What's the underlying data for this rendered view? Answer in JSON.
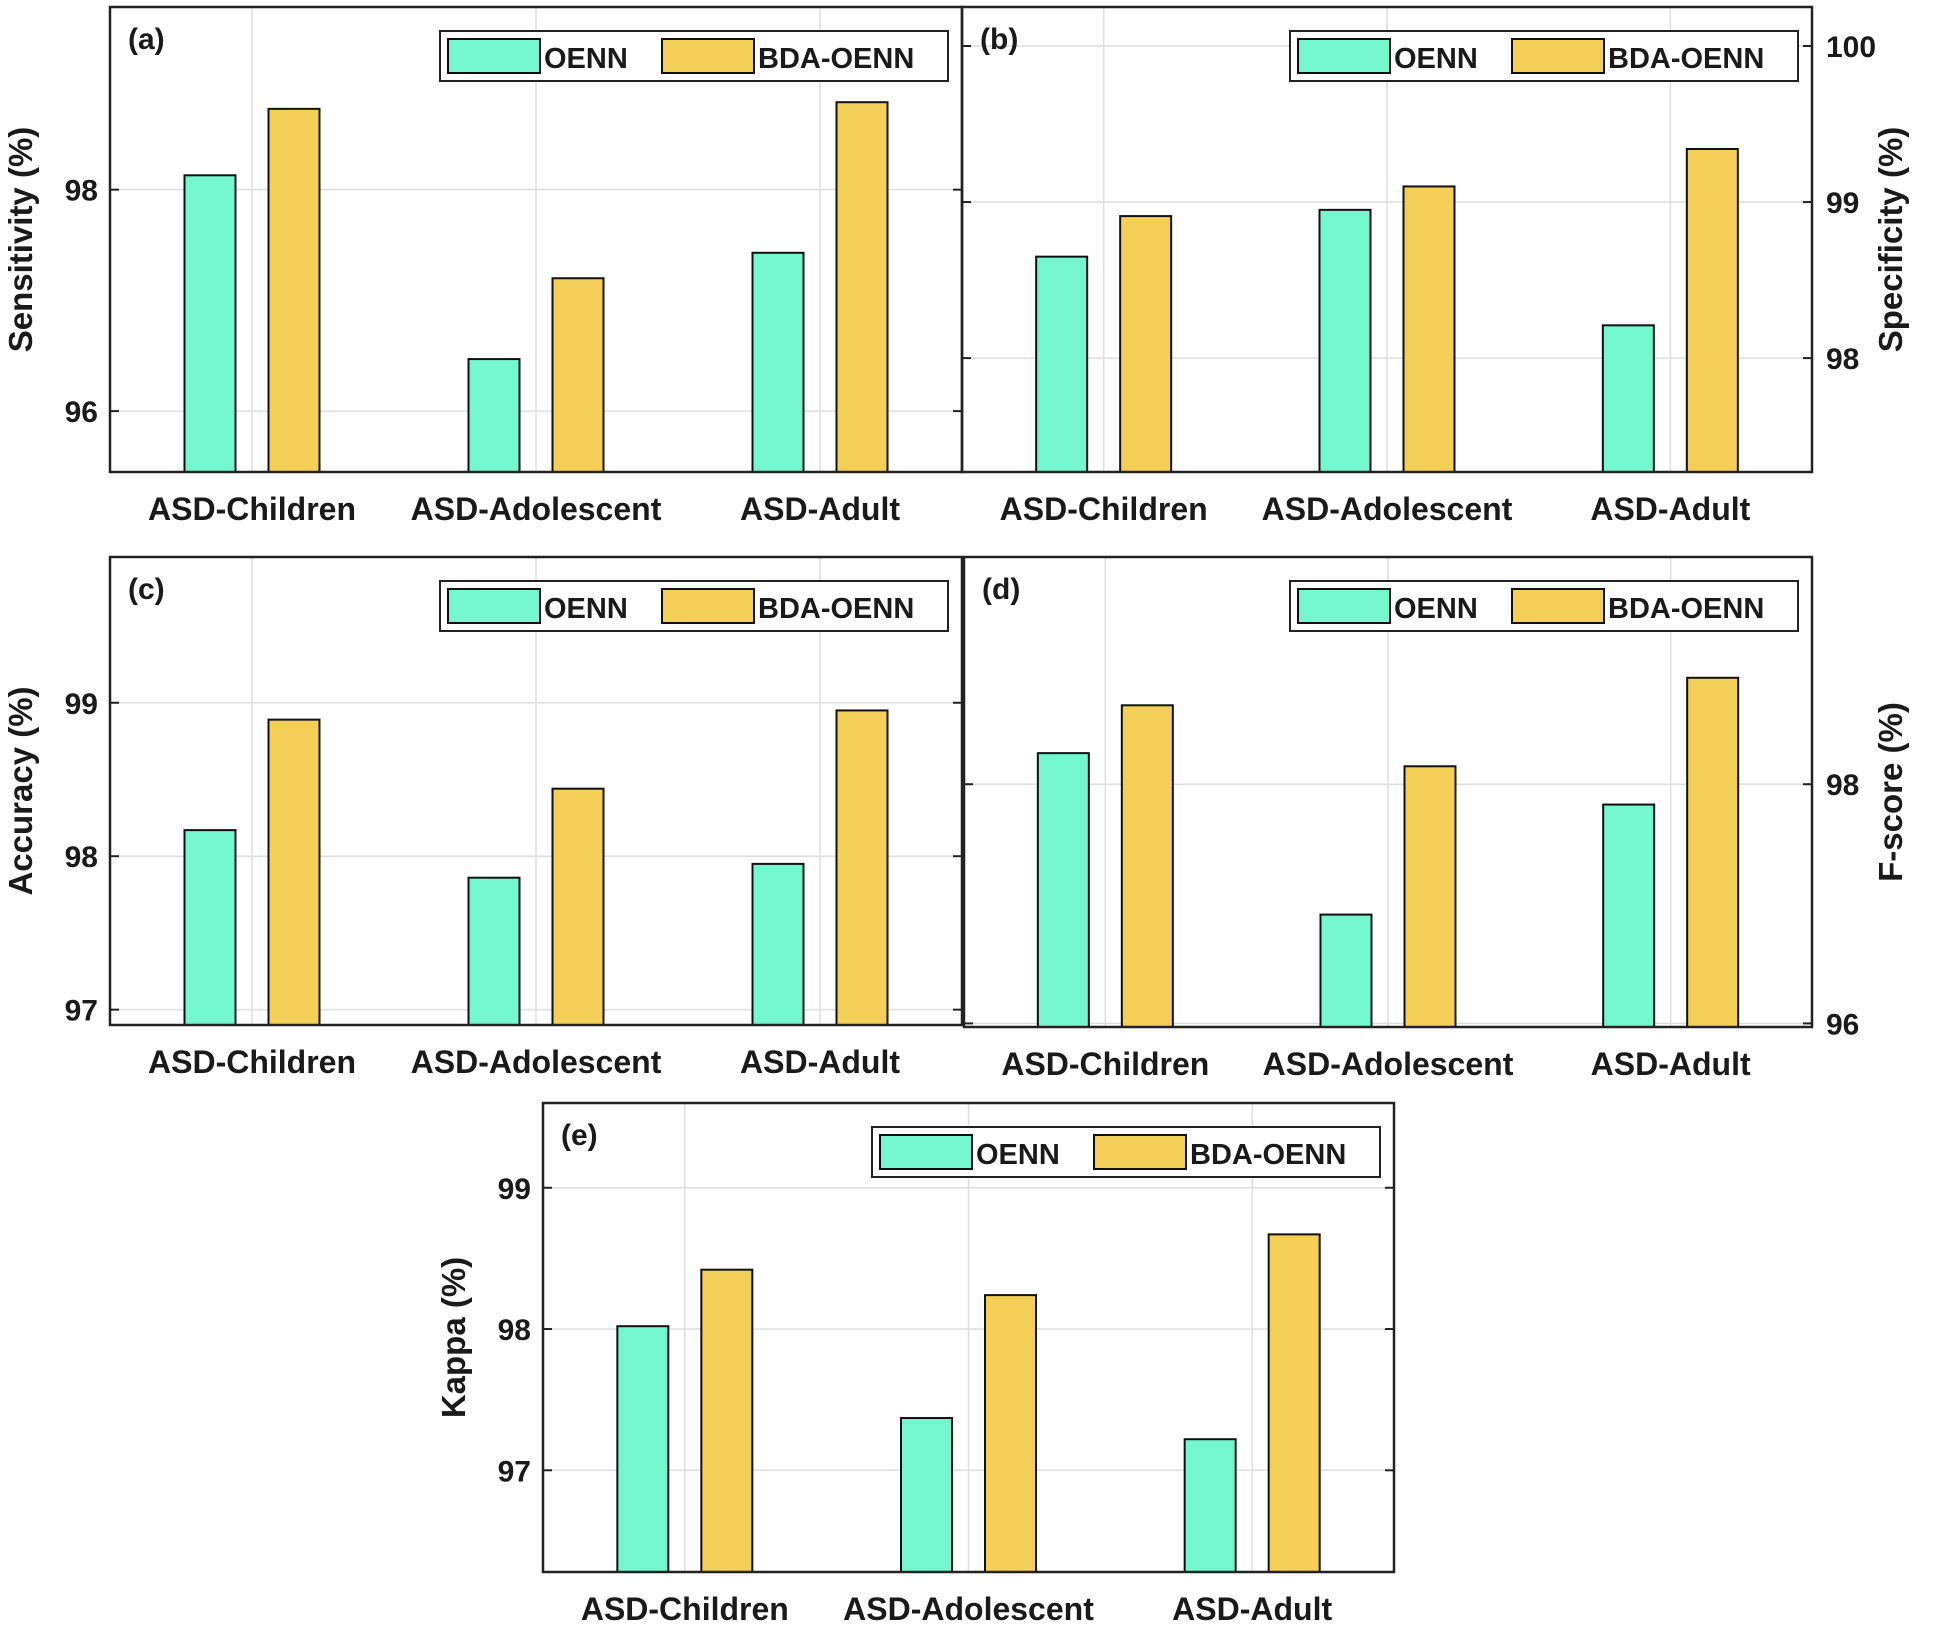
{
  "colors": {
    "oenn": "#74f7cc",
    "bda_oenn": "#f4cf58",
    "bar_edge": "#111111"
  },
  "chart_data": [
    {
      "id": "a",
      "type": "bar",
      "title": "(a)",
      "ylabel": "Sensitivity (%)",
      "ylabel_side": "left",
      "ytick_side": "left",
      "ylim": [
        95.45,
        99.65
      ],
      "yticks": [
        96,
        98
      ],
      "yticklabels": [
        "96",
        "98"
      ],
      "categories": [
        "ASD-Children",
        "ASD-Adolescent",
        "ASD-Adult"
      ],
      "series": [
        {
          "name": "OENN",
          "values": [
            98.13,
            96.47,
            97.43
          ]
        },
        {
          "name": "BDA-OENN",
          "values": [
            98.73,
            97.2,
            98.79
          ]
        }
      ],
      "legend": "top-right"
    },
    {
      "id": "b",
      "type": "bar",
      "title": "(b)",
      "ylabel": "Specificity (%)",
      "ylabel_side": "right",
      "ytick_side": "right",
      "ylim": [
        97.27,
        100.25
      ],
      "yticks": [
        98,
        99,
        100
      ],
      "yticklabels": [
        "98",
        "99",
        "100"
      ],
      "categories": [
        "ASD-Children",
        "ASD-Adolescent",
        "ASD-Adult"
      ],
      "series": [
        {
          "name": "OENN",
          "values": [
            98.65,
            98.95,
            98.21
          ]
        },
        {
          "name": "BDA-OENN",
          "values": [
            98.91,
            99.1,
            99.34
          ]
        }
      ],
      "legend": "top-right"
    },
    {
      "id": "c",
      "type": "bar",
      "title": "(c)",
      "ylabel": "Accuracy (%)",
      "ylabel_side": "left",
      "ytick_side": "left",
      "ylim": [
        96.9,
        99.95
      ],
      "yticks": [
        97,
        98,
        99
      ],
      "yticklabels": [
        "97",
        "98",
        "99"
      ],
      "categories": [
        "ASD-Children",
        "ASD-Adolescent",
        "ASD-Adult"
      ],
      "series": [
        {
          "name": "OENN",
          "values": [
            98.17,
            97.86,
            97.95
          ]
        },
        {
          "name": "BDA-OENN",
          "values": [
            98.89,
            98.44,
            98.95
          ]
        }
      ],
      "legend": "top-right"
    },
    {
      "id": "d",
      "type": "bar",
      "title": "(d)",
      "ylabel": "F-score (%)",
      "ylabel_side": "right",
      "ytick_side": "right",
      "ylim": [
        95.97,
        99.9
      ],
      "yticks": [
        96,
        98
      ],
      "yticklabels": [
        "96",
        "98"
      ],
      "categories": [
        "ASD-Children",
        "ASD-Adolescent",
        "ASD-Adult"
      ],
      "series": [
        {
          "name": "OENN",
          "values": [
            98.26,
            96.91,
            97.83
          ]
        },
        {
          "name": "BDA-OENN",
          "values": [
            98.66,
            98.15,
            98.89
          ]
        }
      ],
      "legend": "top-right"
    },
    {
      "id": "e",
      "type": "bar",
      "title": "(e)",
      "ylabel": "Kappa (%)",
      "ylabel_side": "left",
      "ytick_side": "left",
      "ylim": [
        96.28,
        99.6
      ],
      "yticks": [
        97,
        98,
        99
      ],
      "yticklabels": [
        "97",
        "98",
        "99"
      ],
      "categories": [
        "ASD-Children",
        "ASD-Adolescent",
        "ASD-Adult"
      ],
      "series": [
        {
          "name": "OENN",
          "values": [
            98.02,
            97.37,
            97.22
          ]
        },
        {
          "name": "BDA-OENN",
          "values": [
            98.42,
            98.24,
            98.67
          ]
        }
      ],
      "legend": "top-right"
    }
  ]
}
